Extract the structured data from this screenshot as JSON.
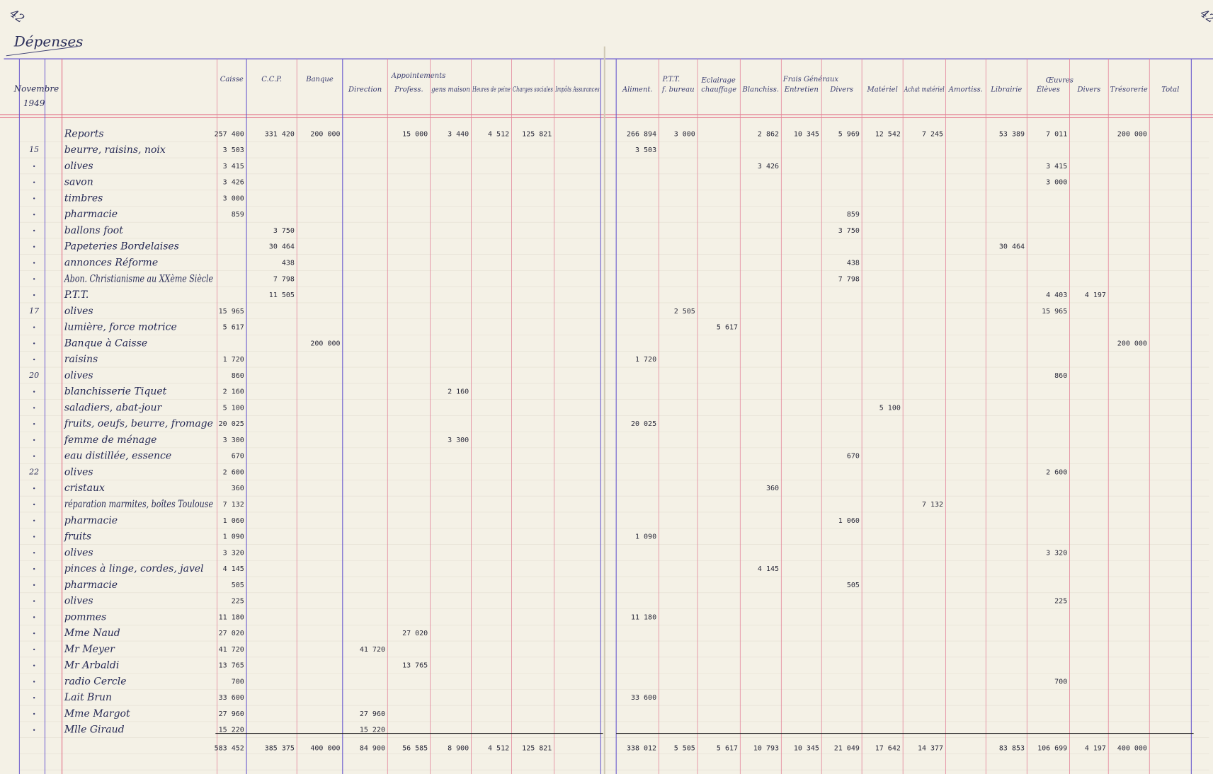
{
  "page_numbers": [
    "42",
    "42"
  ],
  "title": "Dépenses",
  "month": "Novembre",
  "year": "1949",
  "header": {
    "groups": [
      "Appointements",
      "P.T.T.",
      "Eclairage",
      "Frais Généraux",
      "Œuvres"
    ],
    "columns": [
      "Caisse",
      "C.C.P.",
      "Banque",
      "Direction",
      "Profess.",
      "gens maison",
      "Heures de peine",
      "Charges sociales",
      "Impôts Assurances",
      "Aliment.",
      "f. bureau",
      "chauffage",
      "Blanchiss.",
      "Entretien",
      "Divers",
      "Matériel",
      "Achat matériel",
      "Amortiss.",
      "Librairie",
      "Élèves",
      "Divers",
      "Trésorerie",
      "Total"
    ]
  },
  "rows": [
    {
      "label": "Reports",
      "amounts": {
        "0": "257 400",
        "1": "331 420",
        "2": "200 000",
        "4": "15 000",
        "5": "3 440",
        "6": "4 512",
        "7": "125 821",
        "9": "266 894",
        "10": "3 000",
        "12": "2 862",
        "13": "10 345",
        "14": "5 969",
        "15": "12 542",
        "16": "7 245",
        "18": "53 389",
        "19": "7 011",
        "21": "200 000"
      }
    },
    {
      "date": "15",
      "label": "beurre, raisins, noix",
      "amounts": {
        "0": "3 503",
        "9": "3 503"
      }
    },
    {
      "label": "olives",
      "amounts": {
        "0": "3 415",
        "12": "3 426",
        "19": "3 415"
      }
    },
    {
      "label": "savon",
      "amounts": {
        "0": "3 426",
        "19": "3 000"
      }
    },
    {
      "label": "timbres",
      "amounts": {
        "0": "3 000"
      }
    },
    {
      "label": "pharmacie",
      "amounts": {
        "0": "859",
        "14": "859"
      }
    },
    {
      "label": "ballons foot",
      "amounts": {
        "1": "3 750",
        "14": "3 750"
      }
    },
    {
      "label": "Papeteries Bordelaises",
      "amounts": {
        "1": "30 464",
        "18": "30 464"
      }
    },
    {
      "label": "annonces Réforme",
      "amounts": {
        "1": "438",
        "14": "438"
      }
    },
    {
      "label": "Abon. Christianisme au XXème Siècle",
      "amounts": {
        "1": "7 798",
        "14": "7 798"
      }
    },
    {
      "label": "P.T.T.",
      "amounts": {
        "1": "11 505",
        "19": "4 403",
        "20": "4 197"
      }
    },
    {
      "date": "17",
      "label": "olives",
      "amounts": {
        "0": "15 965",
        "10": "2 505",
        "19": "15 965"
      }
    },
    {
      "label": "lumière, force motrice",
      "amounts": {
        "0": "5 617",
        "11": "5 617"
      }
    },
    {
      "label": "Banque à Caisse",
      "amounts": {
        "2": "200 000",
        "21": "200 000"
      }
    },
    {
      "label": "raisins",
      "amounts": {
        "0": "1 720",
        "9": "1 720"
      }
    },
    {
      "date": "20",
      "label": "olives",
      "amounts": {
        "0": "860",
        "19": "860"
      }
    },
    {
      "label": "blanchisserie Tiquet",
      "amounts": {
        "0": "2 160",
        "5": "2 160"
      }
    },
    {
      "label": "saladiers, abat-jour",
      "amounts": {
        "0": "5 100",
        "15": "5 100"
      }
    },
    {
      "label": "fruits, oeufs, beurre, fromage",
      "amounts": {
        "0": "20 025",
        "9": "20 025"
      }
    },
    {
      "label": "femme de ménage",
      "amounts": {
        "0": "3 300",
        "5": "3 300"
      }
    },
    {
      "label": "eau distillée, essence",
      "amounts": {
        "0": "670",
        "14": "670"
      }
    },
    {
      "date": "22",
      "label": "olives",
      "amounts": {
        "0": "2 600",
        "19": "2 600"
      }
    },
    {
      "label": "cristaux",
      "amounts": {
        "0": "360",
        "12": "360"
      }
    },
    {
      "label": "réparation marmites, boîtes Toulouse",
      "amounts": {
        "0": "7 132",
        "16": "7 132"
      }
    },
    {
      "label": "pharmacie",
      "amounts": {
        "0": "1 060",
        "14": "1 060"
      }
    },
    {
      "label": "fruits",
      "amounts": {
        "0": "1 090",
        "9": "1 090"
      }
    },
    {
      "label": "olives",
      "amounts": {
        "0": "3 320",
        "19": "3 320"
      }
    },
    {
      "label": "pinces à linge, cordes, javel",
      "amounts": {
        "0": "4 145",
        "12": "4 145"
      }
    },
    {
      "label": "pharmacie",
      "amounts": {
        "0": "505",
        "14": "505"
      }
    },
    {
      "label": "olives",
      "amounts": {
        "0": "225",
        "19": "225"
      }
    },
    {
      "label": "pommes",
      "amounts": {
        "0": "11 180",
        "9": "11 180"
      }
    },
    {
      "label": "Mme Naud",
      "amounts": {
        "0": "27 020",
        "4": "27 020"
      }
    },
    {
      "label": "Mr Meyer",
      "amounts": {
        "0": "41 720",
        "3": "41 720"
      }
    },
    {
      "label": "Mr Arbaldi",
      "amounts": {
        "0": "13 765",
        "4": "13 765"
      }
    },
    {
      "label": "radio Cercle",
      "amounts": {
        "0": "700",
        "19": "700"
      }
    },
    {
      "label": "Lait Brun",
      "amounts": {
        "0": "33 600",
        "9": "33 600"
      }
    },
    {
      "label": "Mme Margot",
      "amounts": {
        "0": "27 960",
        "3": "27 960"
      }
    },
    {
      "label": "Mlle Giraud",
      "amounts": {
        "0": "15 220",
        "3": "15 220"
      }
    }
  ],
  "totals": {
    "0": "583 452",
    "1": "385 375",
    "2": "400 000",
    "3": "84 900",
    "4": "56 585",
    "5": "8 900",
    "6": "4 512",
    "7": "125 821",
    "9": "338 012",
    "10": "5 505",
    "11": "5 617",
    "12": "10 793",
    "13": "10 345",
    "14": "21 049",
    "15": "17 642",
    "16": "14 377",
    "18": "83 853",
    "19": "106 699",
    "20": "4 197",
    "21": "400 000"
  }
}
